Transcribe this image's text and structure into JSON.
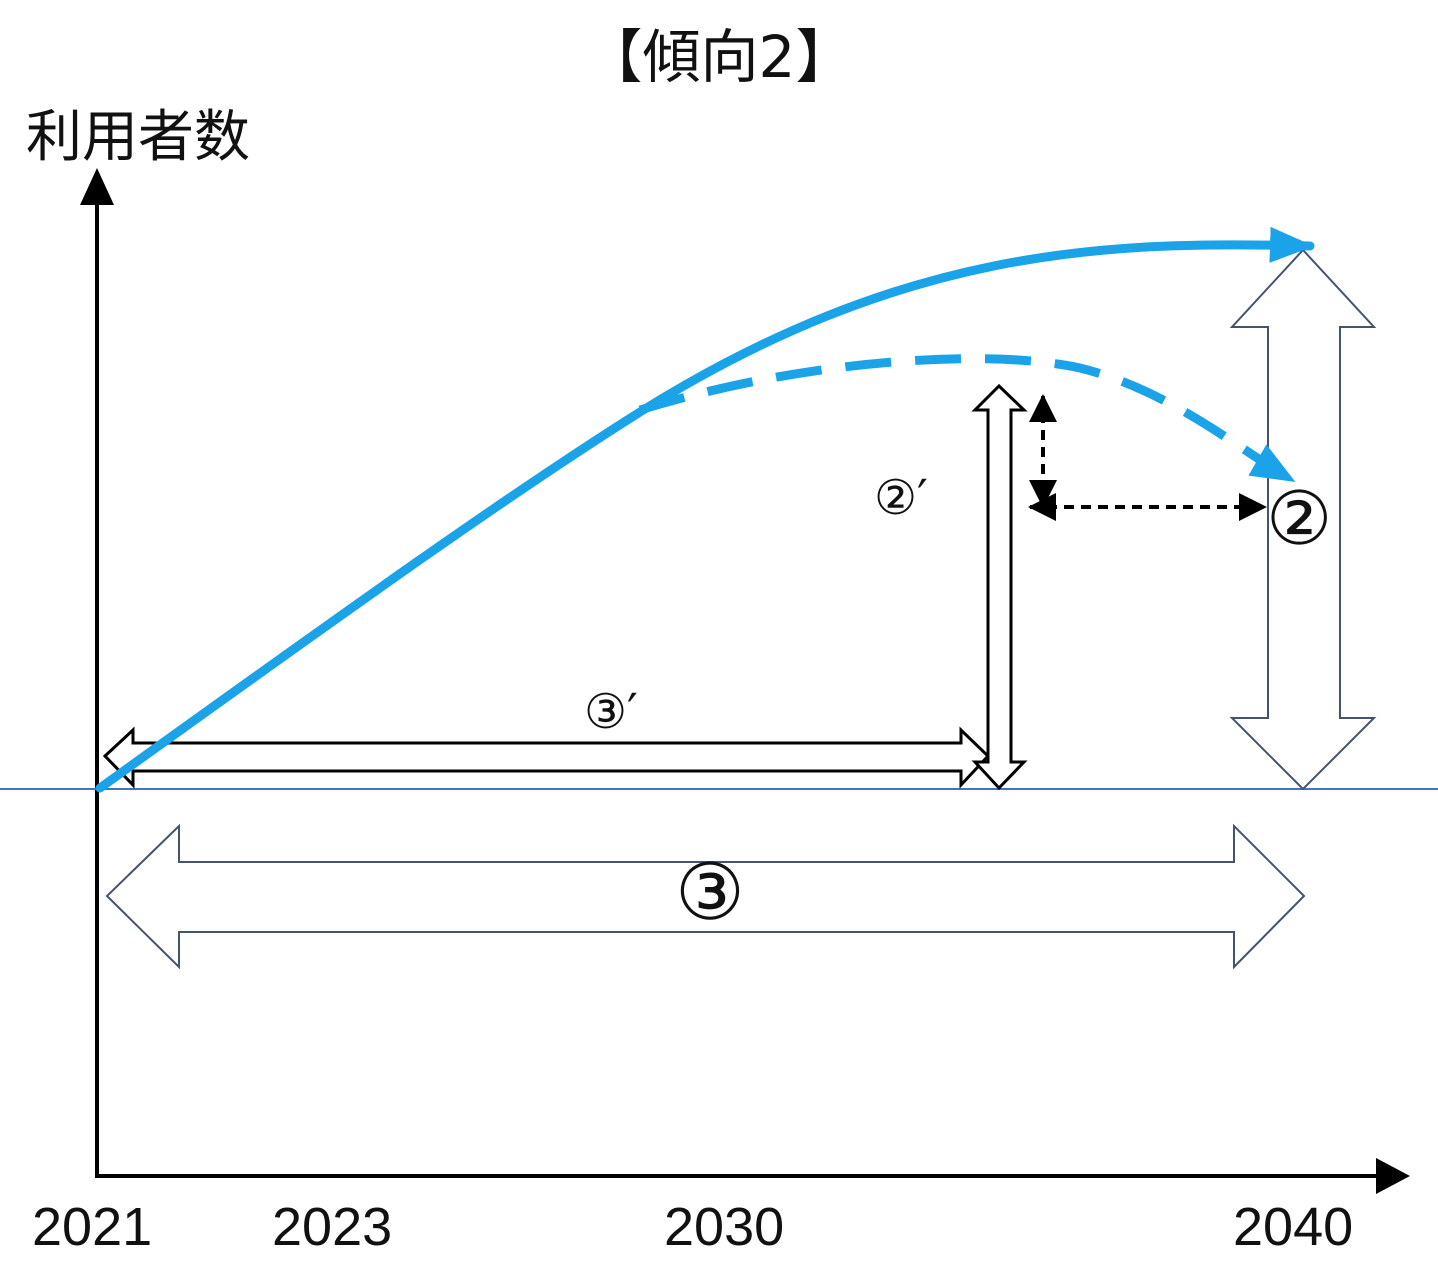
{
  "title": "【傾向2】",
  "y_axis_label": "利用者数",
  "x_ticks": [
    "2021",
    "2023",
    "2030",
    "2040"
  ],
  "markers": {
    "range_2_prime": "②′",
    "range_3_prime": "③′",
    "range_2": "②",
    "range_3": "③"
  },
  "colors": {
    "curve": "#1aa3e8",
    "axis": "#000000",
    "baseline": "#4472c4",
    "outline_arrow": "#44546a"
  }
}
